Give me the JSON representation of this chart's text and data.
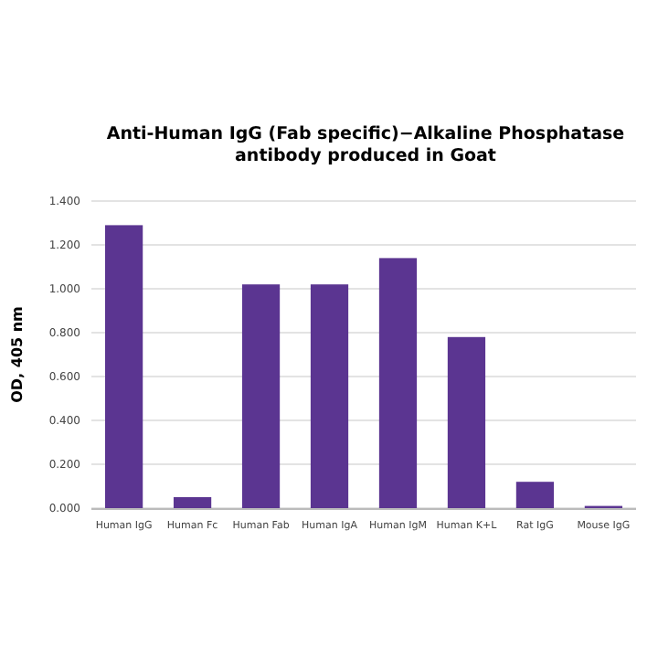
{
  "chart_data": {
    "type": "bar",
    "title": "Anti-Human IgG (Fab specific)−Alkaline Phosphatase antibody produced in Goat",
    "ylabel": "OD, 405 nm",
    "categories": [
      "Human IgG",
      "Human Fc",
      "Human Fab",
      "Human IgA",
      "Human IgM",
      "Human K+L",
      "Rat IgG",
      "Mouse IgG"
    ],
    "values": [
      1.29,
      0.05,
      1.02,
      1.02,
      1.14,
      0.78,
      0.12,
      0.01
    ],
    "color": "#5b3591",
    "ylim": [
      0,
      1.4
    ],
    "yticks": [
      {
        "value": 0,
        "label": "0.000"
      },
      {
        "value": 0.2,
        "label": "0.200"
      },
      {
        "value": 0.4,
        "label": "0.400"
      },
      {
        "value": 0.6,
        "label": "0.600"
      },
      {
        "value": 0.8,
        "label": "0.800"
      },
      {
        "value": 1,
        "label": "1.000"
      },
      {
        "value": 1.2,
        "label": "1.200"
      },
      {
        "value": 1.4,
        "label": "1.400"
      }
    ],
    "grid": "y"
  }
}
